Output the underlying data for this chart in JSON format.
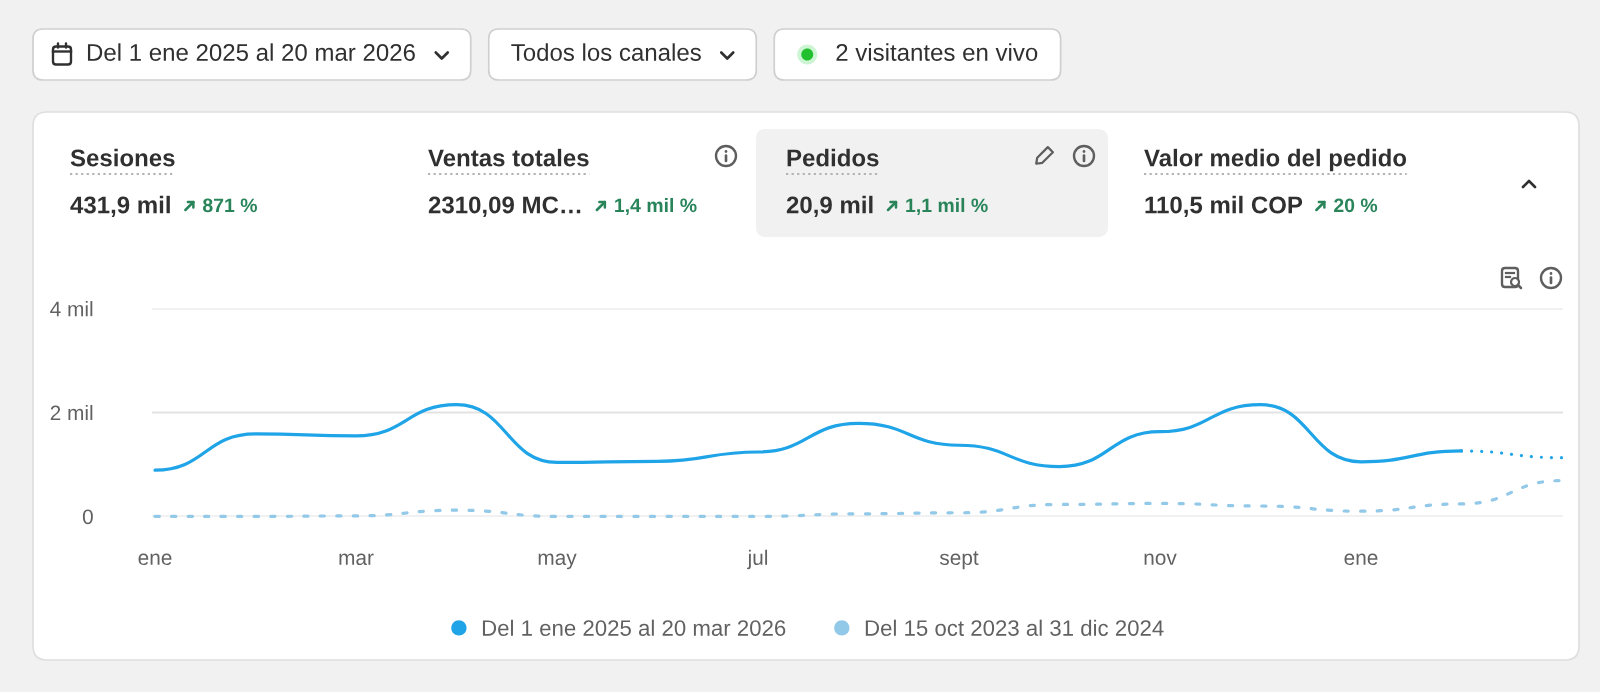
{
  "chart_data": {
    "type": "line",
    "categories": [
      "ene",
      null,
      "mar",
      null,
      "may",
      null,
      "jul",
      null,
      "sept",
      null,
      "nov",
      null,
      "ene",
      null,
      null
    ],
    "series": [
      {
        "name": "Del 1 ene 2025 al 20 mar 2026",
        "color": "#1fa4e7",
        "line_style": "solid",
        "values": [
          0.89,
          1.59,
          1.55,
          2.15,
          1.04,
          1.06,
          1.24,
          1.79,
          1.37,
          0.96,
          1.63,
          2.15,
          1.05,
          1.26,
          null
        ]
      },
      {
        "name": "Del 15 oct 2023 al 31 dic 2024",
        "color": "#92c8e8",
        "line_style": "dashed",
        "values": [
          0,
          0,
          0.01,
          0.12,
          0,
          0,
          0,
          0.05,
          0.07,
          0.23,
          0.25,
          0.2,
          0.1,
          0.24,
          0.69
        ]
      },
      {
        "color": "#1fa4e7",
        "line_style": "dotted",
        "values": [
          null,
          null,
          null,
          null,
          null,
          null,
          null,
          null,
          null,
          null,
          null,
          null,
          null,
          1.26,
          1.13
        ]
      }
    ],
    "ylim": [
      0,
      4
    ],
    "yticks": [
      0,
      {
        "value": 2,
        "label": "2 mil"
      },
      {
        "value": 4,
        "label": "4 mil"
      }
    ],
    "grid": "y",
    "legend": "bottom",
    "annotations": [
      "Del 1 ene 2025 al 20 mar 2026",
      "Todos los canales",
      "2 visitantes en vivo",
      "Sesiones",
      "431,9 mil",
      "871 %",
      "Ventas totales",
      "2310,09 MC…",
      "1,4 mil %",
      "Pedidos",
      "20,9 mil",
      "1,1 mil %",
      "Valor medio del pedido",
      "110,5 mil COP",
      "20 %"
    ]
  }
}
